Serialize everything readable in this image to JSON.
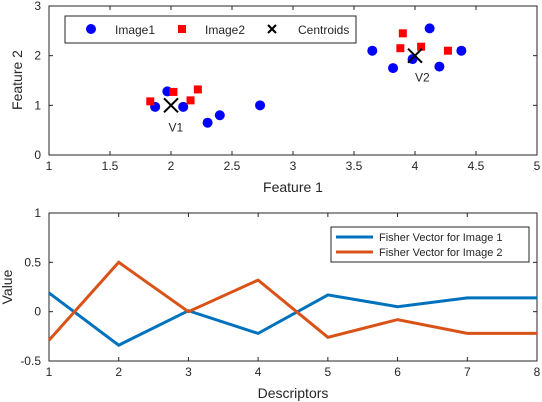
{
  "chart_data": [
    {
      "type": "scatter",
      "xlabel": "Feature 1",
      "ylabel": "Feature 2",
      "xlim": [
        1,
        5
      ],
      "ylim": [
        0,
        3
      ],
      "xticks": [
        "1",
        "1.5",
        "2",
        "2.5",
        "3",
        "3.5",
        "4",
        "4.5",
        "5"
      ],
      "yticks": [
        "0",
        "1",
        "2",
        "3"
      ],
      "legend_position": "top-left",
      "series": [
        {
          "name": "Image1",
          "marker": "circle",
          "color": "#0000ff",
          "points": [
            [
              1.87,
              0.97
            ],
            [
              1.97,
              1.28
            ],
            [
              2.1,
              0.97
            ],
            [
              2.3,
              0.65
            ],
            [
              2.4,
              0.8
            ],
            [
              2.73,
              1.0
            ],
            [
              3.65,
              2.1
            ],
            [
              3.82,
              1.75
            ],
            [
              3.98,
              1.93
            ],
            [
              4.12,
              2.55
            ],
            [
              4.2,
              1.78
            ],
            [
              4.38,
              2.1
            ]
          ]
        },
        {
          "name": "Image2",
          "marker": "square",
          "color": "#ff0000",
          "points": [
            [
              1.83,
              1.08
            ],
            [
              2.02,
              1.27
            ],
            [
              2.16,
              1.1
            ],
            [
              2.22,
              1.32
            ],
            [
              3.88,
              2.15
            ],
            [
              3.9,
              2.45
            ],
            [
              4.05,
              2.18
            ],
            [
              4.27,
              2.1
            ]
          ]
        },
        {
          "name": "Centroids",
          "marker": "x",
          "color": "#000000",
          "points": [
            [
              2.0,
              1.0
            ],
            [
              4.0,
              2.0
            ]
          ]
        }
      ],
      "annotations": [
        {
          "text": "V1",
          "x": 2.04,
          "y": 0.55
        },
        {
          "text": "V2",
          "x": 4.06,
          "y": 1.56
        }
      ]
    },
    {
      "type": "line",
      "xlabel": "Descriptors",
      "ylabel": "Value",
      "xlim": [
        1,
        8
      ],
      "ylim": [
        -0.5,
        1
      ],
      "xticks": [
        "1",
        "2",
        "3",
        "4",
        "5",
        "6",
        "7",
        "8"
      ],
      "yticks": [
        "-0.5",
        "0",
        "0.5",
        "1"
      ],
      "legend_position": "top-right",
      "x": [
        1,
        2,
        3,
        4,
        5,
        6,
        7,
        8
      ],
      "series": [
        {
          "name": "Fisher Vector for Image 1",
          "color": "#0072bd",
          "values": [
            0.19,
            -0.34,
            0.01,
            -0.22,
            0.17,
            0.05,
            0.14,
            0.14
          ]
        },
        {
          "name": "Fisher Vector for Image 2",
          "color": "#d95319",
          "values": [
            -0.29,
            0.5,
            0.0,
            0.32,
            -0.26,
            -0.08,
            -0.22,
            -0.22
          ]
        }
      ]
    }
  ]
}
